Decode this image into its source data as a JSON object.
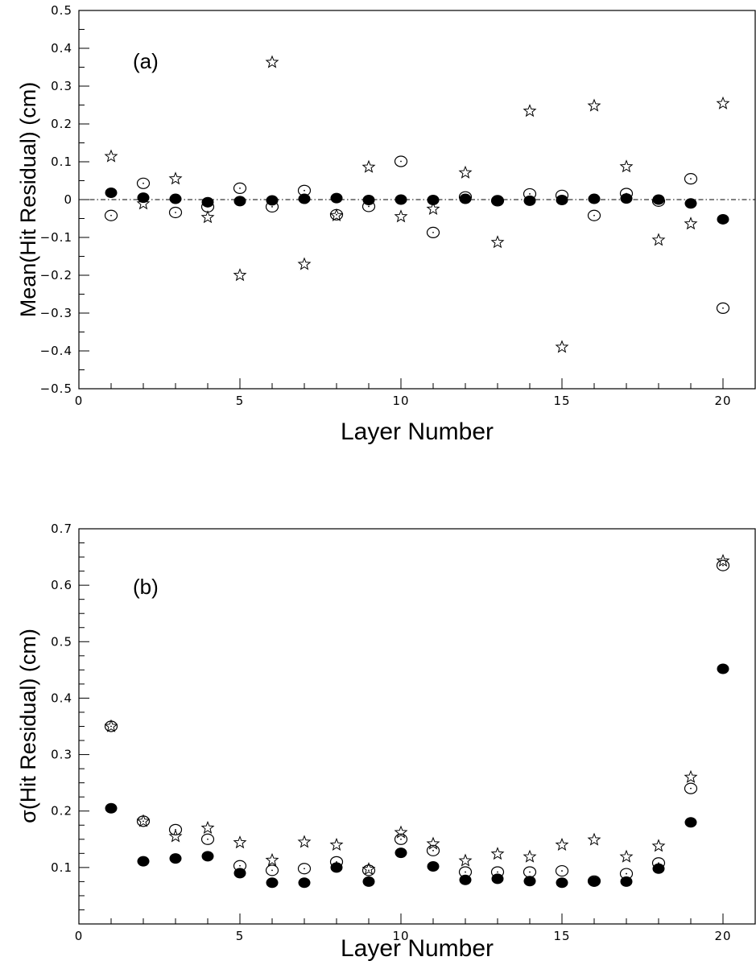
{
  "chart_data": [
    {
      "type": "scatter",
      "panel_label": "(a)",
      "xlabel": "Layer Number",
      "ylabel": "Mean(Hit Residual) (cm)",
      "xlim": [
        0,
        21
      ],
      "ylim": [
        -0.5,
        0.5
      ],
      "x_ticks": [
        "0",
        "5",
        "10",
        "15",
        "20"
      ],
      "y_ticks": [
        "−0.5",
        "−0.4",
        "−0.3",
        "−0.2",
        "−0.1",
        "0",
        "0.1",
        "0.2",
        "0.3",
        "0.4",
        "0.5"
      ],
      "reference_line": 0,
      "series": [
        {
          "marker": "filled-circle",
          "x": [
            1,
            2,
            3,
            4,
            5,
            6,
            7,
            8,
            9,
            10,
            11,
            12,
            13,
            14,
            15,
            16,
            17,
            18,
            19,
            20
          ],
          "values": [
            0.018,
            0.005,
            0.002,
            -0.007,
            -0.004,
            -0.002,
            0.002,
            0.004,
            -0.001,
            0.0,
            -0.001,
            0.002,
            -0.002,
            -0.003,
            -0.001,
            0.002,
            0.003,
            0.0,
            -0.01,
            -0.052
          ]
        },
        {
          "marker": "open-circle",
          "x": [
            1,
            2,
            3,
            4,
            5,
            6,
            7,
            8,
            9,
            10,
            11,
            12,
            13,
            14,
            15,
            16,
            17,
            18,
            19,
            20
          ],
          "values": [
            -0.042,
            0.043,
            -0.034,
            -0.019,
            0.03,
            -0.019,
            0.024,
            -0.04,
            -0.018,
            0.101,
            -0.087,
            0.007,
            -0.003,
            0.015,
            0.011,
            -0.042,
            0.016,
            -0.004,
            0.055,
            -0.287
          ]
        },
        {
          "marker": "open-star",
          "x": [
            1,
            2,
            3,
            4,
            5,
            6,
            7,
            8,
            9,
            10,
            11,
            12,
            13,
            14,
            15,
            16,
            17,
            18,
            19,
            20
          ],
          "values": [
            0.114,
            -0.011,
            0.055,
            -0.047,
            -0.2,
            0.363,
            -0.171,
            -0.042,
            0.086,
            -0.045,
            -0.025,
            0.071,
            -0.113,
            0.234,
            -0.39,
            0.248,
            0.087,
            -0.107,
            -0.064,
            0.254
          ]
        }
      ]
    },
    {
      "type": "scatter",
      "panel_label": "(b)",
      "xlabel": "Layer Number",
      "ylabel": "σ(Hit Residual) (cm)",
      "xlim": [
        0,
        21
      ],
      "ylim": [
        0,
        0.7
      ],
      "x_ticks": [
        "0",
        "5",
        "10",
        "15",
        "20"
      ],
      "y_ticks": [
        "0.1",
        "0.2",
        "0.3",
        "0.4",
        "0.5",
        "0.6",
        "0.7"
      ],
      "series": [
        {
          "marker": "filled-circle",
          "x": [
            1,
            2,
            3,
            4,
            5,
            6,
            7,
            8,
            9,
            10,
            11,
            12,
            13,
            14,
            15,
            16,
            17,
            18,
            19,
            20
          ],
          "values": [
            0.205,
            0.111,
            0.116,
            0.12,
            0.09,
            0.073,
            0.073,
            0.1,
            0.075,
            0.126,
            0.102,
            0.078,
            0.08,
            0.076,
            0.073,
            0.075,
            0.075,
            0.098,
            0.18,
            0.452
          ]
        },
        {
          "marker": "open-circle",
          "x": [
            1,
            2,
            3,
            4,
            5,
            6,
            7,
            8,
            9,
            10,
            11,
            12,
            13,
            14,
            15,
            16,
            17,
            18,
            19,
            20
          ],
          "values": [
            0.35,
            0.182,
            0.167,
            0.15,
            0.103,
            0.095,
            0.098,
            0.11,
            0.095,
            0.15,
            0.13,
            0.092,
            0.092,
            0.092,
            0.094,
            0.076,
            0.089,
            0.108,
            0.24,
            0.635
          ]
        },
        {
          "marker": "open-star",
          "x": [
            1,
            2,
            3,
            4,
            5,
            6,
            7,
            8,
            9,
            10,
            11,
            12,
            13,
            14,
            15,
            16,
            17,
            18,
            19,
            20
          ],
          "values": [
            0.35,
            0.182,
            0.155,
            0.17,
            0.144,
            0.113,
            0.145,
            0.14,
            0.097,
            0.162,
            0.142,
            0.112,
            0.124,
            0.119,
            0.14,
            0.149,
            0.119,
            0.138,
            0.26,
            0.643
          ]
        }
      ]
    }
  ]
}
